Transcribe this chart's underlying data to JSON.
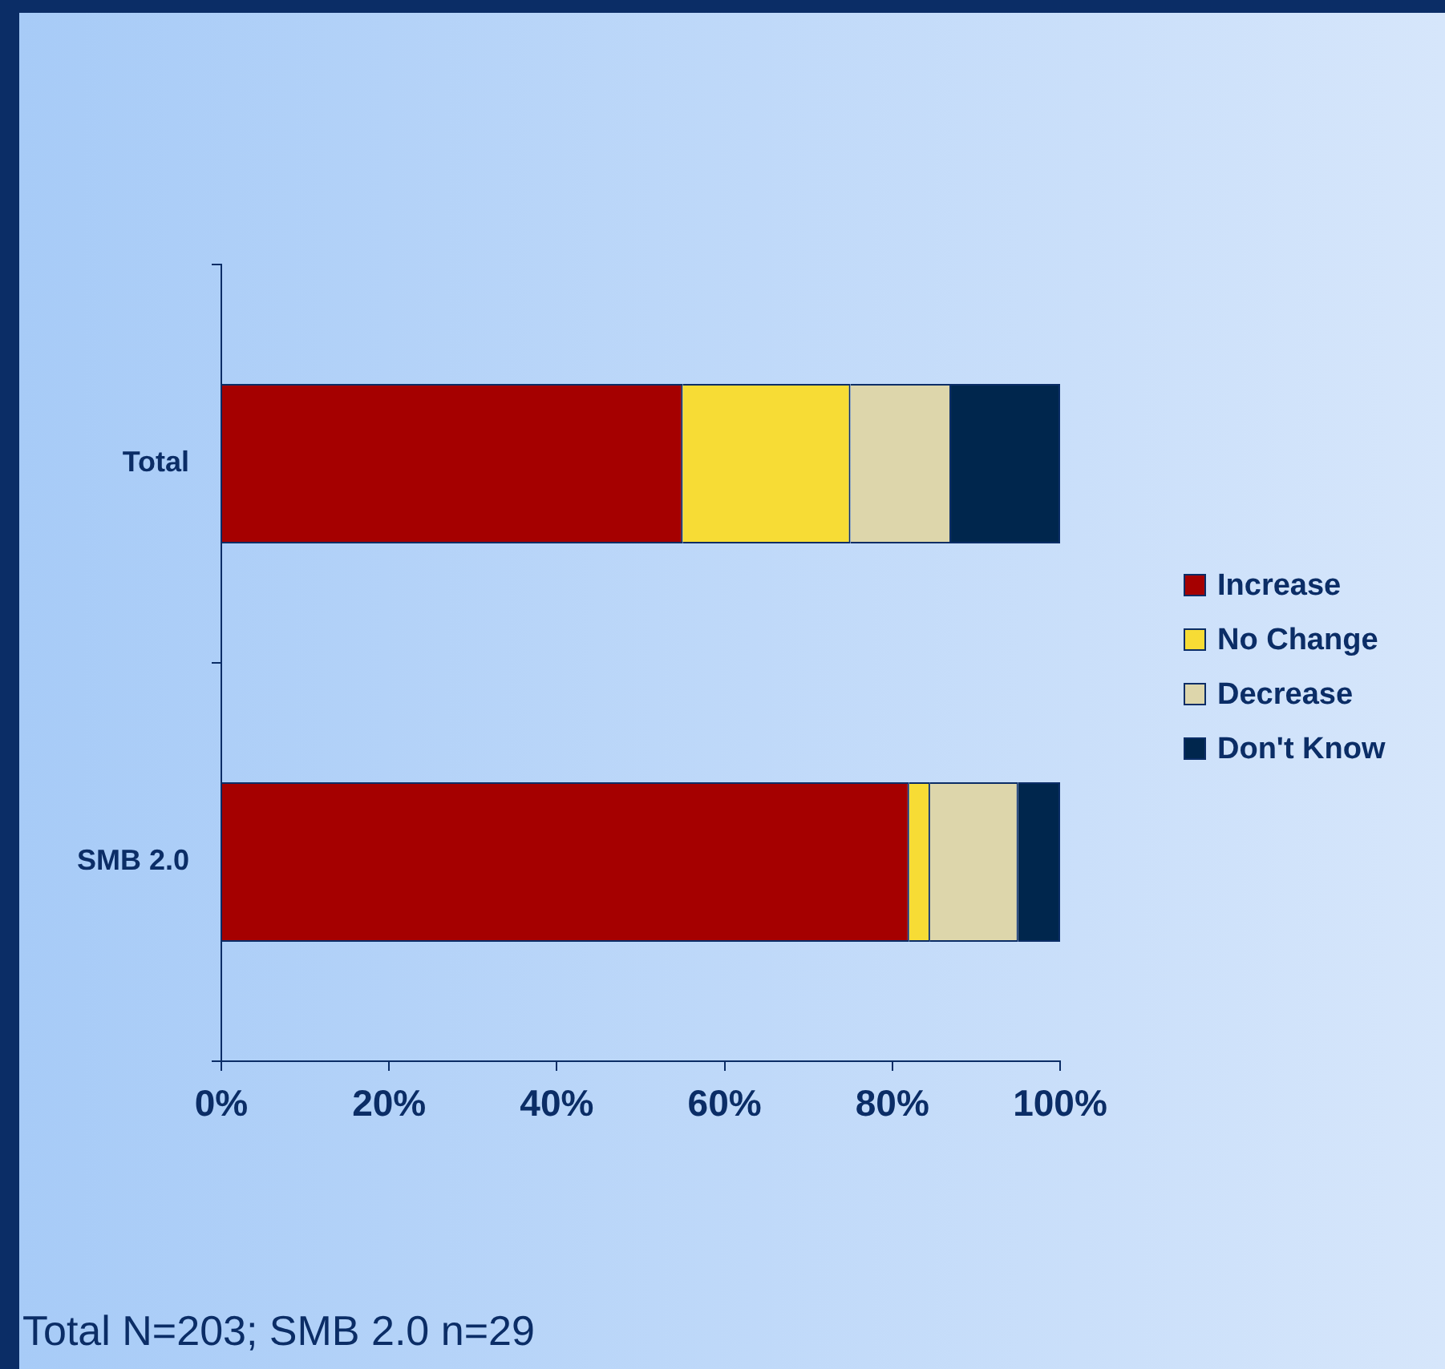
{
  "chart_data": {
    "type": "bar",
    "orientation": "horizontal",
    "stacked": true,
    "categories": [
      "Total",
      "SMB 2.0"
    ],
    "series": [
      {
        "name": "Increase",
        "color": "#a50000",
        "values": [
          55,
          82
        ]
      },
      {
        "name": "No Change",
        "color": "#f7dc35",
        "values": [
          20,
          2.5
        ]
      },
      {
        "name": "Decrease",
        "color": "#ddd6ab",
        "values": [
          12,
          10.5
        ]
      },
      {
        "name": "Don't Know",
        "color": "#00264d",
        "values": [
          13,
          5
        ]
      }
    ],
    "xlim": [
      0,
      100
    ],
    "xticks": [
      {
        "value": 0,
        "label": "0%"
      },
      {
        "value": 20,
        "label": "20%"
      },
      {
        "value": 40,
        "label": "40%"
      },
      {
        "value": 60,
        "label": "60%"
      },
      {
        "value": 80,
        "label": "80%"
      },
      {
        "value": 100,
        "label": "100%"
      }
    ],
    "grid": false,
    "legend": "right",
    "annotations": [
      "Total N=203; SMB 2.0 n=29"
    ]
  }
}
